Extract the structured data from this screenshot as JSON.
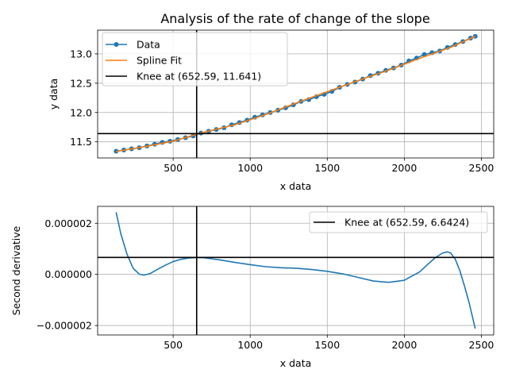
{
  "chart_data": [
    {
      "type": "line",
      "title": "Analysis of the rate of change of the slope",
      "xlabel": "x data",
      "ylabel": "y data",
      "xlim": [
        10,
        2580
      ],
      "ylim": [
        11.225,
        13.405
      ],
      "xticks": [
        500,
        1000,
        1500,
        2000,
        2500
      ],
      "xtick_labels": [
        "500",
        "1000",
        "1500",
        "2000",
        "2500"
      ],
      "yticks": [
        11.5,
        12.0,
        12.5,
        13.0
      ],
      "ytick_labels": [
        "11.5",
        "12.0",
        "12.5",
        "13.0"
      ],
      "grid": true,
      "legend_position": "upper-left",
      "series": [
        {
          "name": "Data",
          "style": "line-with-markers",
          "color": "#1f77b4",
          "x": [
            130,
            180,
            230,
            280,
            330,
            380,
            430,
            480,
            530,
            580,
            630,
            680,
            730,
            780,
            830,
            880,
            930,
            980,
            1030,
            1080,
            1130,
            1180,
            1230,
            1280,
            1330,
            1380,
            1430,
            1480,
            1530,
            1580,
            1630,
            1680,
            1730,
            1780,
            1830,
            1880,
            1930,
            1980,
            2030,
            2080,
            2130,
            2180,
            2230,
            2280,
            2330,
            2380,
            2430,
            2460
          ],
          "y": [
            11.34,
            11.36,
            11.38,
            11.4,
            11.43,
            11.46,
            11.49,
            11.51,
            11.54,
            11.57,
            11.6,
            11.65,
            11.68,
            11.71,
            11.74,
            11.79,
            11.83,
            11.87,
            11.92,
            11.96,
            12.0,
            12.04,
            12.08,
            12.13,
            12.19,
            12.22,
            12.27,
            12.31,
            12.36,
            12.43,
            12.48,
            12.52,
            12.57,
            12.63,
            12.67,
            12.72,
            12.76,
            12.81,
            12.88,
            12.93,
            12.99,
            13.02,
            13.05,
            13.11,
            13.16,
            13.21,
            13.27,
            13.3
          ]
        },
        {
          "name": "Spline Fit",
          "style": "line",
          "color": "#ff7f0e",
          "x": [
            130,
            300,
            500,
            700,
            900,
            1100,
            1300,
            1500,
            1700,
            1900,
            2100,
            2300,
            2460
          ],
          "y": [
            11.335,
            11.41,
            11.51,
            11.665,
            11.79,
            11.965,
            12.165,
            12.355,
            12.545,
            12.725,
            12.925,
            13.11,
            13.3
          ]
        }
      ],
      "annotations": [
        {
          "name": "Knee at (652.59, 11.641)",
          "type": "vline",
          "x": 652.59,
          "color": "#000000"
        },
        {
          "name": "Knee at (652.59, 11.641)",
          "type": "hline",
          "y": 11.641,
          "color": "#000000"
        }
      ]
    },
    {
      "type": "line",
      "title": "",
      "xlabel": "x data",
      "ylabel": "Second derivative",
      "xlim": [
        10,
        2580
      ],
      "ylim": [
        -2.37e-06,
        2.66e-06
      ],
      "xticks": [
        500,
        1000,
        1500,
        2000,
        2500
      ],
      "xtick_labels": [
        "500",
        "1000",
        "1500",
        "2000",
        "2500"
      ],
      "yticks": [
        -2e-06,
        0.0,
        2e-06
      ],
      "ytick_labels": [
        "−0.000002",
        "0.000000",
        "0.000002"
      ],
      "grid": true,
      "legend_position": "upper-right",
      "series": [
        {
          "name": "Second derivative",
          "style": "line",
          "color": "#1f77b4",
          "x": [
            130,
            160,
            200,
            240,
            280,
            310,
            350,
            400,
            450,
            500,
            550,
            600,
            650,
            700,
            800,
            900,
            1000,
            1100,
            1200,
            1300,
            1400,
            1500,
            1600,
            1700,
            1800,
            1900,
            2000,
            2100,
            2150,
            2200,
            2250,
            2280,
            2300,
            2330,
            2360,
            2390,
            2420,
            2460
          ],
          "y": [
            2.43e-06,
            1.6e-06,
            8e-07,
            2.4e-07,
            1e-08,
            -3e-08,
            3e-08,
            2e-07,
            3.6e-07,
            5e-07,
            5.9e-07,
            6.4e-07,
            6.6e-07,
            6.5e-07,
            5.7e-07,
            4.7e-07,
            3.8e-07,
            3e-07,
            2.6e-07,
            2.4e-07,
            1.9e-07,
            1.2e-07,
            2e-08,
            -1.2e-07,
            -2.6e-07,
            -3.1e-07,
            -2.3e-07,
            1e-07,
            3.8e-07,
            6.5e-07,
            8.4e-07,
            8.8e-07,
            8.4e-07,
            6e-07,
            1.5e-07,
            -4.5e-07,
            -1.1e-06,
            -2.12e-06
          ]
        }
      ],
      "annotations": [
        {
          "name": "Knee at (652.59, 6.6424)",
          "type": "vline",
          "x": 652.59,
          "color": "#000000"
        },
        {
          "name": "Knee at (652.59, 6.6424)",
          "type": "hline",
          "y": 6.6424e-07,
          "color": "#000000"
        }
      ]
    }
  ]
}
